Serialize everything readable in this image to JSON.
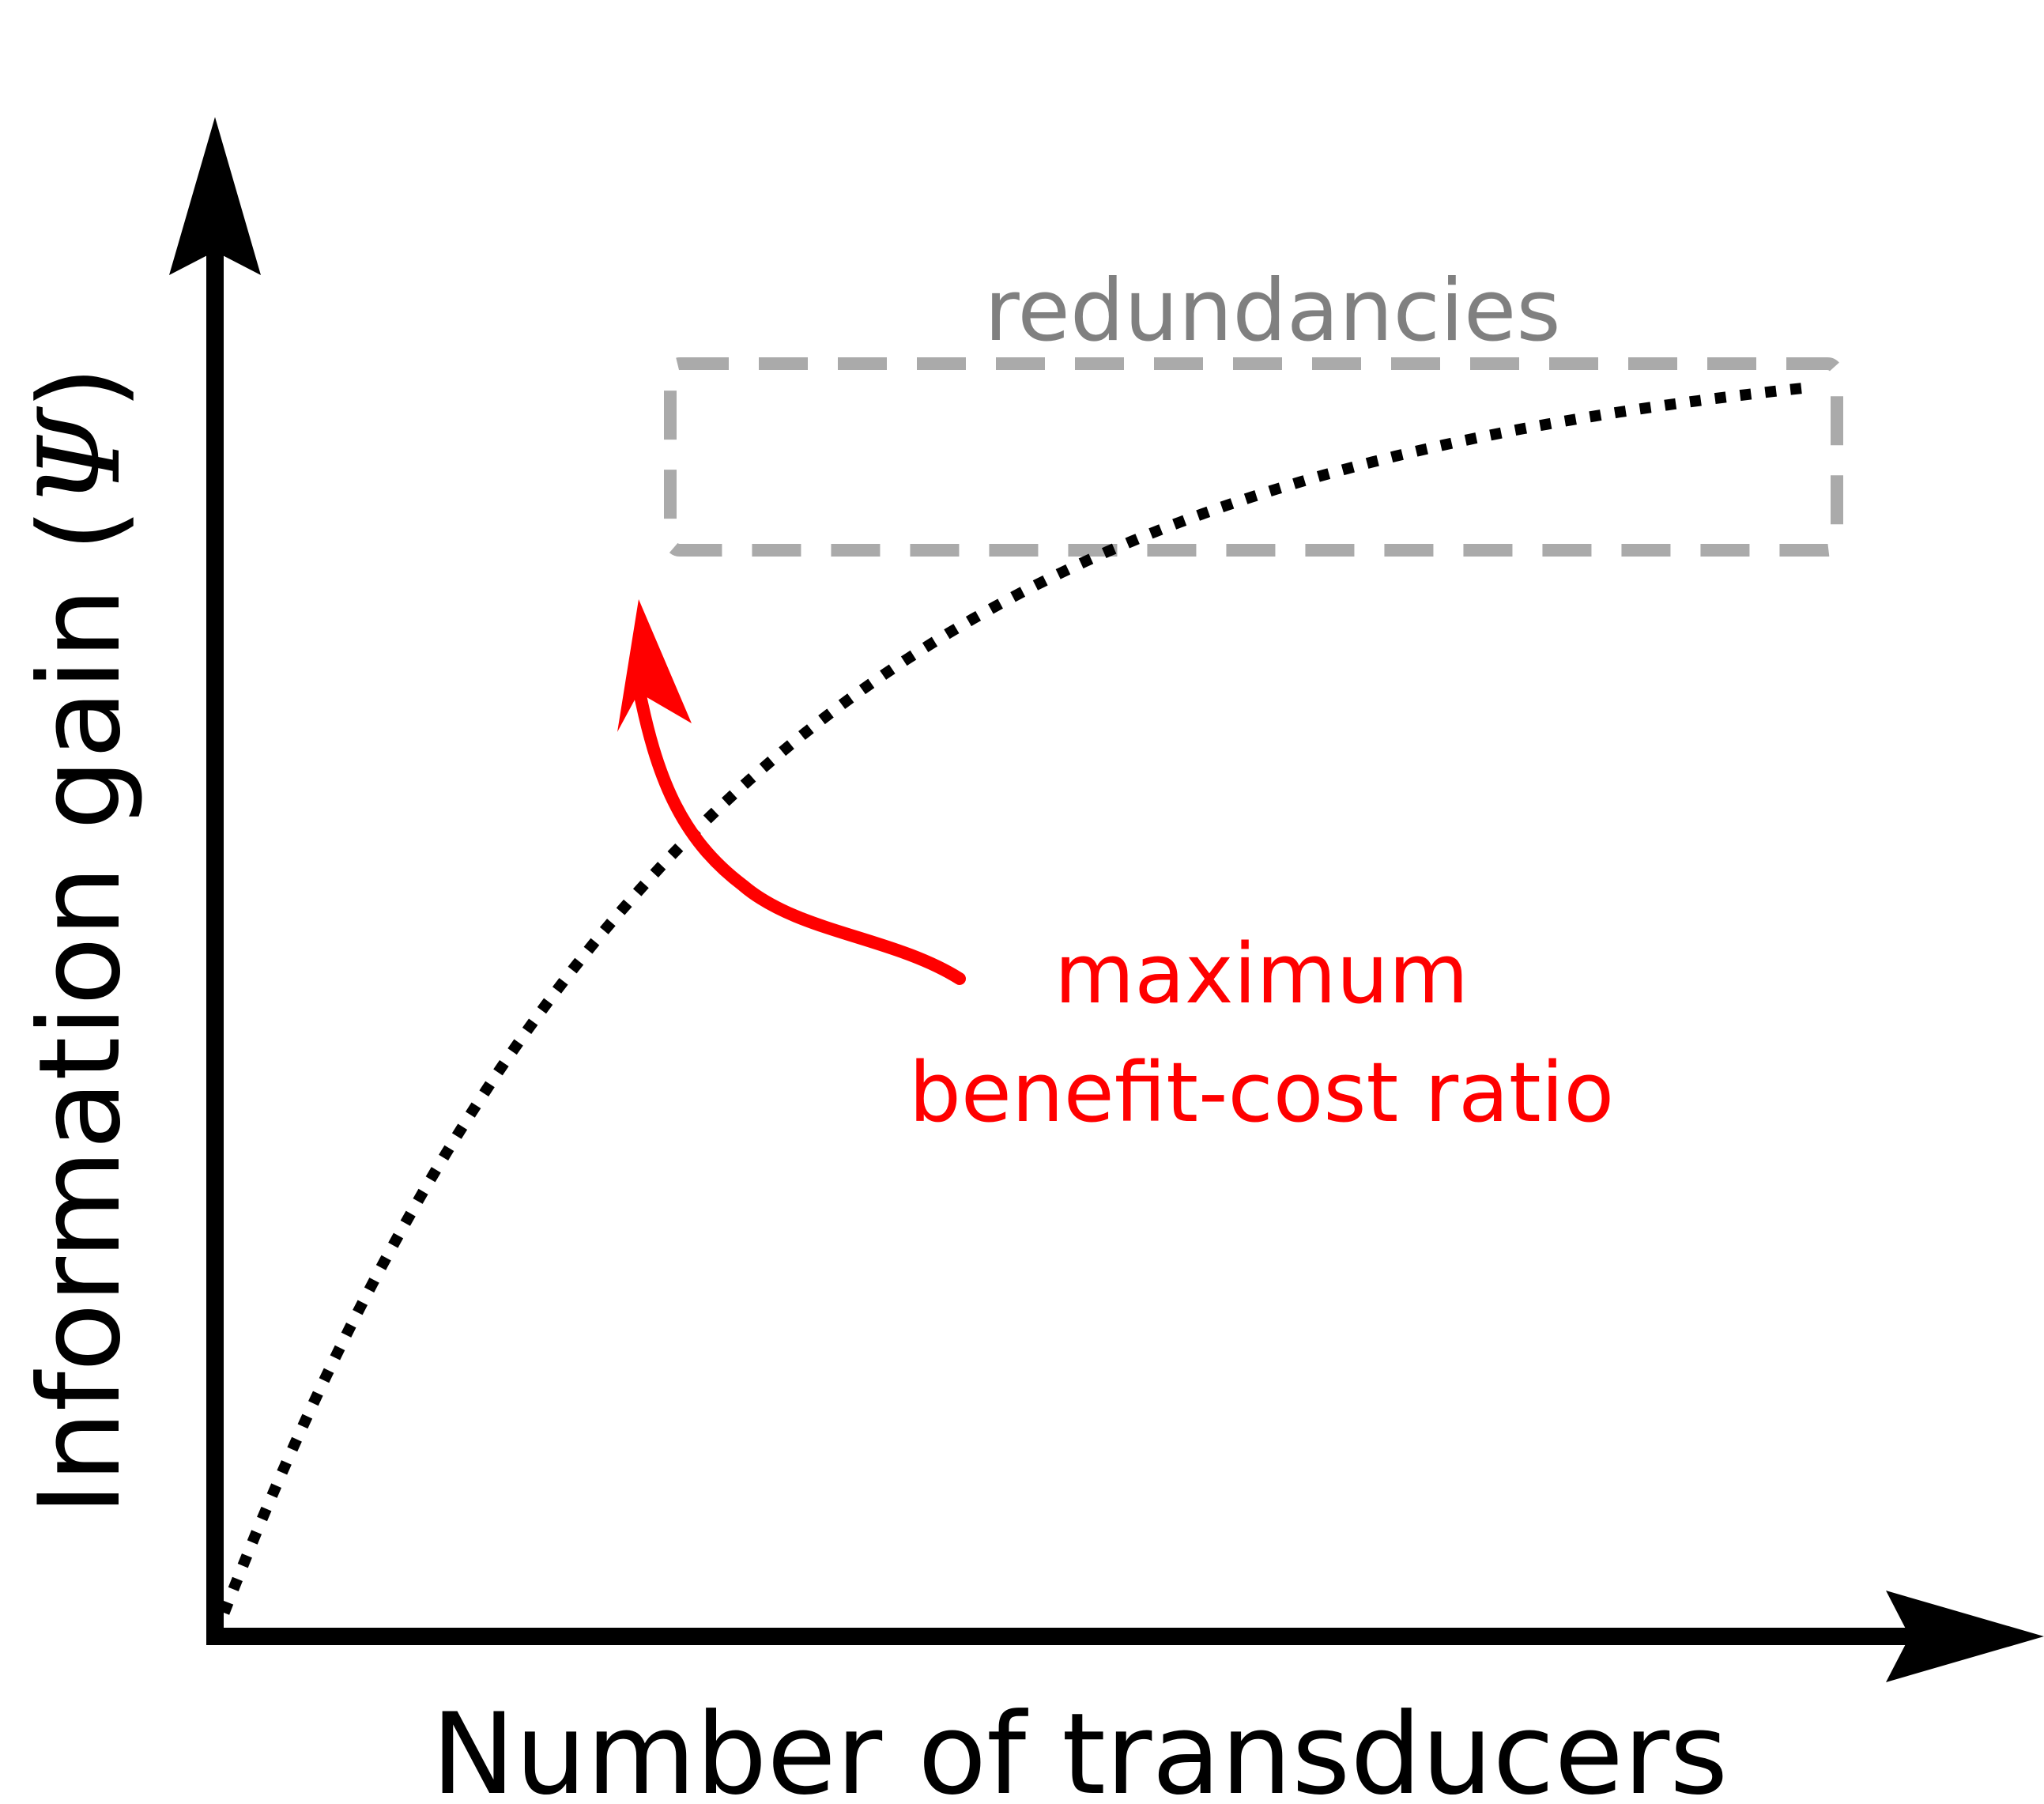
{
  "axes": {
    "x_label": "Number of transducers",
    "y_label_text": "Information gain (",
    "y_label_symbol": "Ψ",
    "y_label_close": ")"
  },
  "annotations": {
    "redundancies": "redundancies",
    "optimum_line1": "maximum",
    "optimum_line2": "benefit-cost ratio"
  },
  "colors": {
    "axis": "#000000",
    "curve": "#000000",
    "redundancy": "#aaaaaa",
    "redundancy_text": "#808080",
    "optimum": "#ff0000"
  },
  "curve": {
    "shape": "saturating",
    "style": "dotted",
    "function": "1 - exp(-k*x)",
    "k": 3.2
  }
}
